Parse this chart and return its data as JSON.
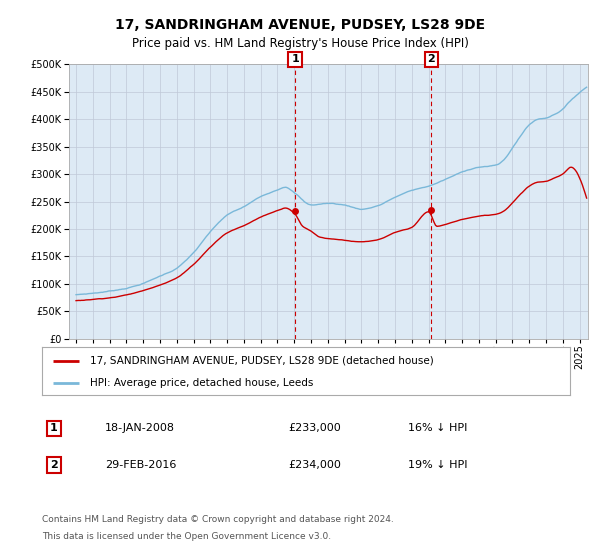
{
  "title": "17, SANDRINGHAM AVENUE, PUDSEY, LS28 9DE",
  "subtitle": "Price paid vs. HM Land Registry's House Price Index (HPI)",
  "legend_line1": "17, SANDRINGHAM AVENUE, PUDSEY, LS28 9DE (detached house)",
  "legend_line2": "HPI: Average price, detached house, Leeds",
  "footnote1": "Contains HM Land Registry data © Crown copyright and database right 2024.",
  "footnote2": "This data is licensed under the Open Government Licence v3.0.",
  "sale1_label": "1",
  "sale1_date": "18-JAN-2008",
  "sale1_price": "£233,000",
  "sale1_hpi": "16% ↓ HPI",
  "sale2_label": "2",
  "sale2_date": "29-FEB-2016",
  "sale2_price": "£234,000",
  "sale2_hpi": "19% ↓ HPI",
  "sale1_year": 2008.05,
  "sale1_value": 233000,
  "sale2_year": 2016.16,
  "sale2_value": 234000,
  "hpi_color": "#7ab8d9",
  "sale_color": "#cc0000",
  "vline_color": "#cc0000",
  "bg_color": "#ddeaf5",
  "plot_bg": "#ffffff",
  "ylim": [
    0,
    500000
  ],
  "yticks": [
    0,
    50000,
    100000,
    150000,
    200000,
    250000,
    300000,
    350000,
    400000,
    450000,
    500000
  ],
  "grid_color": "#c0c8d8",
  "title_fontsize": 10,
  "subtitle_fontsize": 8.5,
  "tick_fontsize": 7,
  "legend_fontsize": 7.5,
  "footnote_fontsize": 6.5,
  "table_fontsize": 8
}
